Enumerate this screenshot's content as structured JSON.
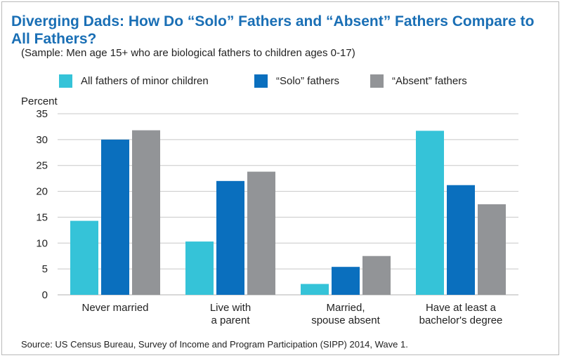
{
  "chart_data": {
    "type": "bar",
    "title": "Diverging Dads: How Do “Solo” Fathers and “Absent” Fathers Compare to All Fathers?",
    "subtitle": "(Sample: Men age 15+ who are biological fathers to children ages 0-17)",
    "ylabel": "Percent",
    "ylim": [
      0,
      35
    ],
    "yticks": [
      0,
      5,
      10,
      15,
      20,
      25,
      30,
      35
    ],
    "grid": true,
    "legend_position": "top",
    "categories": [
      [
        "Never married"
      ],
      [
        "Live with",
        "a parent"
      ],
      [
        "Married,",
        "spouse absent"
      ],
      [
        "Have at least a",
        "bachelor's degree"
      ]
    ],
    "series": [
      {
        "name": "All fathers of minor children",
        "color": "#35c3d8",
        "values": [
          14.3,
          10.3,
          2.1,
          31.7
        ]
      },
      {
        "name": "“Solo” fathers",
        "color": "#0a6fbe",
        "values": [
          30.0,
          22.0,
          5.4,
          21.2
        ]
      },
      {
        "name": "“Absent” fathers",
        "color": "#929497",
        "values": [
          31.8,
          23.8,
          7.5,
          17.5
        ]
      }
    ],
    "source": "Source: US Census Bureau, Survey of Income and Program Participation (SIPP) 2014, Wave 1."
  }
}
